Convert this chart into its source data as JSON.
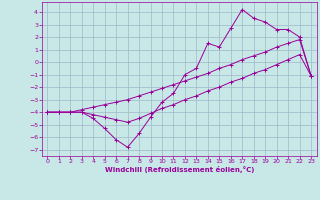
{
  "bg_color": "#c8e8e8",
  "grid_color": "#a0b8c8",
  "line_color": "#990099",
  "xlabel": "Windchill (Refroidissement éolien,°C)",
  "xlim": [
    -0.5,
    23.5
  ],
  "ylim": [
    -7.5,
    4.8
  ],
  "yticks": [
    -7,
    -6,
    -5,
    -4,
    -3,
    -2,
    -1,
    0,
    1,
    2,
    3,
    4
  ],
  "xticks": [
    0,
    1,
    2,
    3,
    4,
    5,
    6,
    7,
    8,
    9,
    10,
    11,
    12,
    13,
    14,
    15,
    16,
    17,
    18,
    19,
    20,
    21,
    22,
    23
  ],
  "curve1_x": [
    0,
    1,
    2,
    3,
    4,
    5,
    6,
    7,
    8,
    9,
    10,
    11,
    12,
    13,
    14,
    15,
    16,
    17,
    18,
    19,
    20,
    21,
    22,
    23
  ],
  "curve1_y": [
    -4.0,
    -4.0,
    -4.0,
    -4.0,
    -4.5,
    -5.3,
    -6.2,
    -6.8,
    -5.7,
    -4.4,
    -3.2,
    -2.5,
    -1.0,
    -0.5,
    1.5,
    1.2,
    2.7,
    4.2,
    3.5,
    3.2,
    2.6,
    2.6,
    2.0,
    -1.1
  ],
  "curve2_x": [
    0,
    1,
    2,
    3,
    4,
    5,
    6,
    7,
    8,
    9,
    10,
    11,
    12,
    13,
    14,
    15,
    16,
    17,
    18,
    19,
    20,
    21,
    22,
    23
  ],
  "curve2_y": [
    -4.0,
    -4.0,
    -4.0,
    -4.0,
    -4.2,
    -4.4,
    -4.6,
    -4.8,
    -4.5,
    -4.1,
    -3.7,
    -3.4,
    -3.0,
    -2.7,
    -2.3,
    -2.0,
    -1.6,
    -1.3,
    -0.9,
    -0.6,
    -0.2,
    0.2,
    0.6,
    -1.1
  ],
  "curve3_x": [
    0,
    1,
    2,
    3,
    4,
    5,
    6,
    7,
    8,
    9,
    10,
    11,
    12,
    13,
    14,
    15,
    16,
    17,
    18,
    19,
    20,
    21,
    22,
    23
  ],
  "curve3_y": [
    -4.0,
    -4.0,
    -4.0,
    -3.8,
    -3.6,
    -3.4,
    -3.2,
    -3.0,
    -2.7,
    -2.4,
    -2.1,
    -1.8,
    -1.5,
    -1.2,
    -0.9,
    -0.5,
    -0.2,
    0.2,
    0.5,
    0.8,
    1.2,
    1.5,
    1.8,
    -1.1
  ]
}
